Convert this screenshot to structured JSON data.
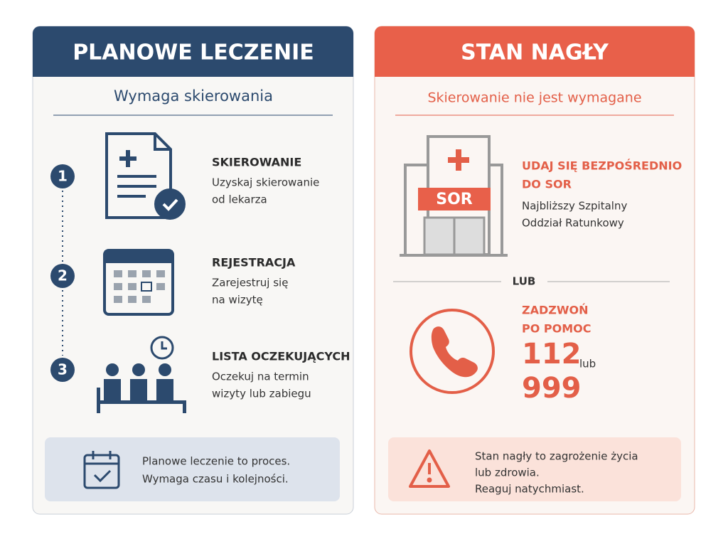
{
  "left": {
    "title": "PLANOWE LECZENIE",
    "subtitle": "Wymaga skierowania",
    "steps": [
      {
        "number": "1",
        "title": "SKIEROWANIE",
        "lines": [
          "Uzyskaj skierowanie",
          "od lekarza"
        ]
      },
      {
        "number": "2",
        "title": "REJESTRACJA",
        "lines": [
          "Zarejestruj się",
          "na wizytę"
        ]
      },
      {
        "number": "3",
        "title": "LISTA OCZEKUJĄCYCH",
        "lines": [
          "Oczekuj na termin",
          "wizyty lub zabiegu"
        ]
      }
    ],
    "note": [
      "Planowe leczenie to proces.",
      "Wymaga czasu i kolejności."
    ]
  },
  "right": {
    "title": "STAN NAGŁY",
    "subtitle": "Skierowanie nie jest wymagane",
    "hospital_sign": "SOR",
    "heading": [
      "UDAJ SIĘ BEZPOŚREDNIO",
      "DO SOR"
    ],
    "lines": [
      "Najbliższy Szpitalny",
      "Oddział Ratunkowy"
    ],
    "divider": "LUB",
    "call_heading": [
      "ZADZWOŃ",
      "PO POMOC"
    ],
    "numbers": [
      "112",
      "999"
    ],
    "or": "lub",
    "note": [
      "Stan nagły to zagrożenie życia",
      "lub zdrowia.",
      "Reaguj natychmiast."
    ]
  }
}
